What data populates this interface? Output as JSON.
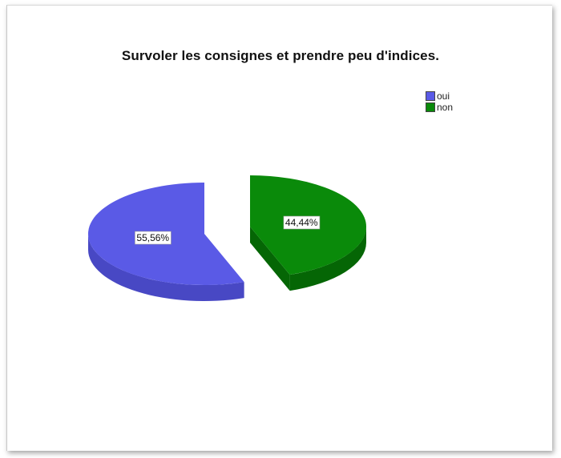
{
  "chart_data": {
    "type": "pie",
    "title": "Survoler les consignes et prendre peu d'indices.",
    "categories": [
      "oui",
      "non"
    ],
    "values": [
      55.56,
      44.44
    ],
    "data_labels": [
      "55,56%",
      "44,44%"
    ],
    "legend": {
      "placement": "top-right",
      "entries": [
        "oui",
        "non"
      ]
    },
    "colors": {
      "oui": "#5a5ae6",
      "oui_side": "#4848c4",
      "non": "#0a8a0a",
      "non_side": "#056605"
    },
    "style": "3d-exploded"
  }
}
